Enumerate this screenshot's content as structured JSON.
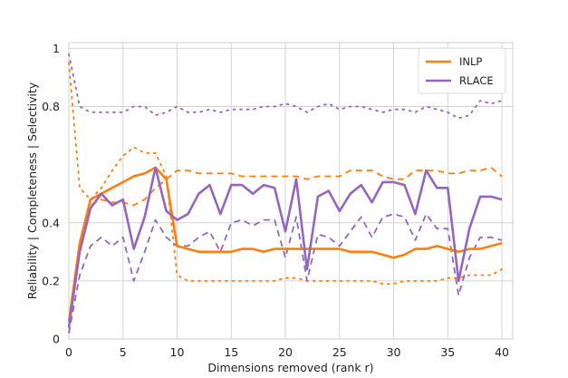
{
  "chart_data": {
    "type": "line",
    "title": "",
    "xlabel": "Dimensions removed (rank r)",
    "ylabel": "Reliability | Completeness | Selectivity",
    "xlim": [
      0,
      41
    ],
    "ylim": [
      0,
      1.02
    ],
    "x_ticks": [
      0,
      5,
      10,
      15,
      20,
      25,
      30,
      35,
      40
    ],
    "y_ticks": [
      {
        "value": 0,
        "label": "0"
      },
      {
        "value": 0.2,
        "label": "0.2"
      },
      {
        "value": 0.4,
        "label": "0.4"
      },
      {
        "value": 0.8,
        "label": "0.8"
      },
      {
        "value": 1.0,
        "label": "1"
      }
    ],
    "grid": true,
    "legend_position": "top-right",
    "legend": [
      {
        "name": "INLP",
        "color": "#ff7f0e"
      },
      {
        "name": "RLACE",
        "color": "#9467bd"
      }
    ],
    "series": [
      {
        "name": "INLP",
        "metric": "solid",
        "color": "#ff7f0e",
        "dash": "solid",
        "x": [
          0,
          1,
          2,
          3,
          4,
          5,
          6,
          7,
          8,
          9,
          10,
          11,
          12,
          13,
          14,
          15,
          16,
          17,
          18,
          19,
          20,
          21,
          22,
          23,
          24,
          25,
          26,
          27,
          28,
          29,
          30,
          31,
          32,
          33,
          34,
          35,
          36,
          37,
          38,
          39,
          40
        ],
        "values": [
          0.06,
          0.33,
          0.48,
          0.5,
          0.52,
          0.54,
          0.56,
          0.57,
          0.59,
          0.55,
          0.32,
          0.31,
          0.3,
          0.3,
          0.3,
          0.3,
          0.31,
          0.31,
          0.3,
          0.31,
          0.31,
          0.31,
          0.31,
          0.31,
          0.31,
          0.31,
          0.3,
          0.3,
          0.3,
          0.29,
          0.28,
          0.29,
          0.31,
          0.31,
          0.32,
          0.31,
          0.3,
          0.31,
          0.31,
          0.32,
          0.33
        ]
      },
      {
        "name": "RLACE",
        "metric": "solid",
        "color": "#9467bd",
        "dash": "solid",
        "x": [
          0,
          1,
          2,
          3,
          4,
          5,
          6,
          7,
          8,
          9,
          10,
          11,
          12,
          13,
          14,
          15,
          16,
          17,
          18,
          19,
          20,
          21,
          22,
          23,
          24,
          25,
          26,
          27,
          28,
          29,
          30,
          31,
          32,
          33,
          34,
          35,
          36,
          37,
          38,
          39,
          40
        ],
        "values": [
          0.04,
          0.3,
          0.45,
          0.5,
          0.46,
          0.48,
          0.31,
          0.42,
          0.59,
          0.44,
          0.41,
          0.43,
          0.5,
          0.53,
          0.43,
          0.53,
          0.53,
          0.5,
          0.53,
          0.52,
          0.37,
          0.55,
          0.24,
          0.49,
          0.51,
          0.44,
          0.5,
          0.53,
          0.47,
          0.54,
          0.54,
          0.53,
          0.43,
          0.58,
          0.52,
          0.52,
          0.2,
          0.38,
          0.49,
          0.49,
          0.48
        ]
      },
      {
        "name": "INLP",
        "metric": "dashed",
        "color": "#ff7f0e",
        "dash": "dashed",
        "x": [
          0,
          1,
          2,
          3,
          4,
          5,
          6,
          7,
          8,
          9,
          10,
          11,
          12,
          13,
          14,
          15,
          16,
          17,
          18,
          19,
          20,
          21,
          22,
          23,
          24,
          25,
          26,
          27,
          28,
          29,
          30,
          31,
          32,
          33,
          34,
          35,
          36,
          37,
          38,
          39,
          40
        ],
        "values": [
          0.02,
          0.32,
          0.46,
          0.48,
          0.47,
          0.47,
          0.46,
          0.48,
          0.52,
          0.55,
          0.58,
          0.58,
          0.57,
          0.57,
          0.57,
          0.57,
          0.56,
          0.56,
          0.56,
          0.56,
          0.56,
          0.56,
          0.55,
          0.56,
          0.56,
          0.56,
          0.58,
          0.58,
          0.58,
          0.56,
          0.55,
          0.55,
          0.58,
          0.58,
          0.58,
          0.57,
          0.57,
          0.58,
          0.58,
          0.59,
          0.56
        ]
      },
      {
        "name": "RLACE",
        "metric": "dashed",
        "color": "#9467bd",
        "dash": "dashed",
        "x": [
          0,
          1,
          2,
          3,
          4,
          5,
          6,
          7,
          8,
          9,
          10,
          11,
          12,
          13,
          14,
          15,
          16,
          17,
          18,
          19,
          20,
          21,
          22,
          23,
          24,
          25,
          26,
          27,
          28,
          29,
          30,
          31,
          32,
          33,
          34,
          35,
          36,
          37,
          38,
          39,
          40
        ],
        "values": [
          0.02,
          0.22,
          0.32,
          0.35,
          0.32,
          0.35,
          0.2,
          0.3,
          0.41,
          0.35,
          0.32,
          0.32,
          0.35,
          0.37,
          0.3,
          0.4,
          0.41,
          0.39,
          0.41,
          0.41,
          0.28,
          0.42,
          0.2,
          0.36,
          0.35,
          0.32,
          0.37,
          0.42,
          0.35,
          0.42,
          0.43,
          0.42,
          0.34,
          0.43,
          0.38,
          0.38,
          0.15,
          0.28,
          0.35,
          0.35,
          0.34
        ]
      },
      {
        "name": "INLP",
        "metric": "dotted",
        "color": "#ff7f0e",
        "dash": "dotted",
        "x": [
          0,
          1,
          2,
          3,
          4,
          5,
          6,
          7,
          8,
          9,
          10,
          11,
          12,
          13,
          14,
          15,
          16,
          17,
          18,
          19,
          20,
          21,
          22,
          23,
          24,
          25,
          26,
          27,
          28,
          29,
          30,
          31,
          32,
          33,
          34,
          35,
          36,
          37,
          38,
          39,
          40
        ],
        "values": [
          0.95,
          0.52,
          0.48,
          0.52,
          0.58,
          0.63,
          0.66,
          0.64,
          0.64,
          0.56,
          0.22,
          0.2,
          0.2,
          0.2,
          0.2,
          0.2,
          0.2,
          0.2,
          0.2,
          0.2,
          0.21,
          0.21,
          0.2,
          0.2,
          0.2,
          0.2,
          0.2,
          0.2,
          0.2,
          0.19,
          0.19,
          0.2,
          0.2,
          0.2,
          0.2,
          0.21,
          0.21,
          0.22,
          0.22,
          0.22,
          0.24
        ]
      },
      {
        "name": "RLACE",
        "metric": "dotted",
        "color": "#9467bd",
        "dash": "dotted",
        "x": [
          0,
          1,
          2,
          3,
          4,
          5,
          6,
          7,
          8,
          9,
          10,
          11,
          12,
          13,
          14,
          15,
          16,
          17,
          18,
          19,
          20,
          21,
          22,
          23,
          24,
          25,
          26,
          27,
          28,
          29,
          30,
          31,
          32,
          33,
          34,
          35,
          36,
          37,
          38,
          39,
          40
        ],
        "values": [
          0.98,
          0.8,
          0.78,
          0.78,
          0.78,
          0.78,
          0.8,
          0.8,
          0.77,
          0.78,
          0.8,
          0.78,
          0.78,
          0.79,
          0.78,
          0.79,
          0.79,
          0.79,
          0.8,
          0.8,
          0.81,
          0.8,
          0.78,
          0.8,
          0.81,
          0.79,
          0.8,
          0.8,
          0.79,
          0.78,
          0.79,
          0.79,
          0.78,
          0.8,
          0.79,
          0.78,
          0.76,
          0.77,
          0.82,
          0.81,
          0.82
        ]
      }
    ]
  }
}
